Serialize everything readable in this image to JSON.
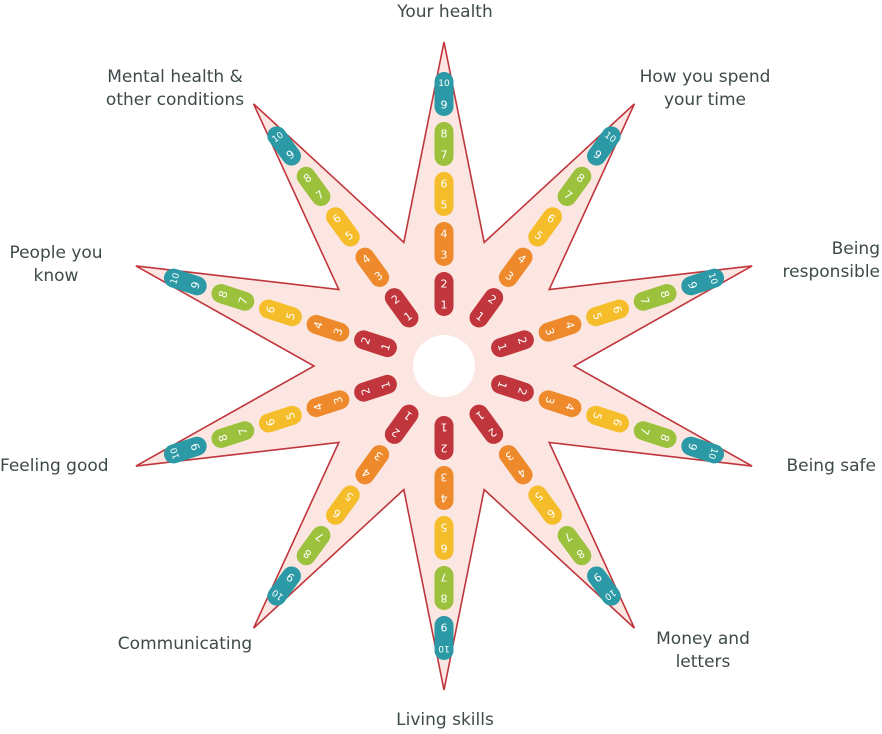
{
  "colors": {
    "star_fill": "#fbe6e2",
    "star_stroke": "#c0363c",
    "band_1_2": "#c0363c",
    "band_3_4": "#ee8a2c",
    "band_5_6": "#f5bd2a",
    "band_7_8": "#9cc13c",
    "band_9_10": "#2c9aa6",
    "label_text": "#3e4a4a",
    "number_text": "#ffffff"
  },
  "scale": [
    "1",
    "2",
    "3",
    "4",
    "5",
    "6",
    "7",
    "8",
    "9",
    "10"
  ],
  "areas": [
    {
      "name": "your-health",
      "lines": [
        "Your health"
      ]
    },
    {
      "name": "how-you-spend-your-time",
      "lines": [
        "How you spend",
        "your time"
      ]
    },
    {
      "name": "being-responsible",
      "lines": [
        "Being",
        "responsible"
      ]
    },
    {
      "name": "being-safe",
      "lines": [
        "Being safe"
      ]
    },
    {
      "name": "money-and-letters",
      "lines": [
        "Money and",
        "letters"
      ]
    },
    {
      "name": "living-skills",
      "lines": [
        "Living skills"
      ]
    },
    {
      "name": "communicating",
      "lines": [
        "Communicating"
      ]
    },
    {
      "name": "feeling-good",
      "lines": [
        "Feeling good"
      ]
    },
    {
      "name": "people-you-know",
      "lines": [
        "People you",
        "know"
      ]
    },
    {
      "name": "mental-health-and-other-conditions",
      "lines": [
        "Mental health &",
        "other conditions"
      ]
    }
  ]
}
